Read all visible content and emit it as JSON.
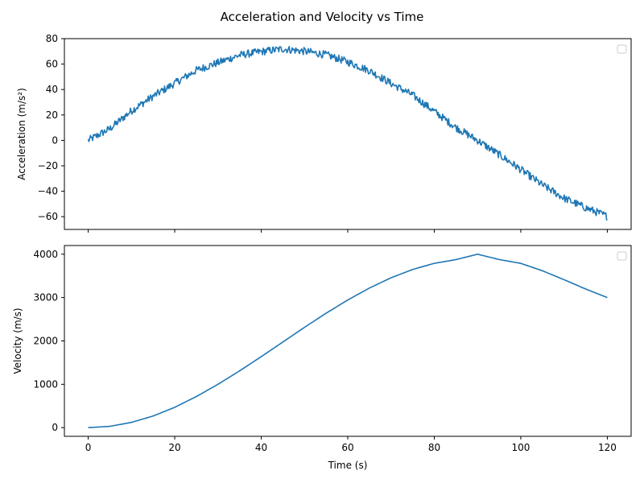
{
  "figure": {
    "title": "Acceleration and Velocity vs Time"
  },
  "chart_data": [
    {
      "type": "line",
      "ylabel": "Acceleration (m/s²)",
      "xlabel": "",
      "xlim": [
        -5.5,
        125.5
      ],
      "ylim": [
        -70,
        80
      ],
      "x_ticks": [
        0,
        20,
        40,
        60,
        80,
        100,
        120
      ],
      "x_tick_labels_visible": false,
      "y_ticks": [
        -60,
        -40,
        -20,
        0,
        20,
        40,
        60,
        80
      ],
      "y_tick_labels": [
        "−60",
        "−40",
        "−20",
        "0",
        "20",
        "40",
        "60",
        "80"
      ],
      "grid": false,
      "legend": {
        "placement": "top-right",
        "entries": []
      },
      "line_color": "#1f77b4",
      "noisy": true,
      "series": [
        {
          "x": [
            0,
            5,
            10,
            15,
            20,
            25,
            30,
            35,
            40,
            45,
            50,
            55,
            60,
            65,
            70,
            75,
            80,
            85,
            90,
            95,
            100,
            105,
            110,
            115,
            120
          ],
          "values": [
            0,
            9.1,
            23.3,
            34.7,
            44.9,
            55.1,
            61.1,
            67.0,
            69.8,
            71.9,
            70.1,
            67.3,
            61.7,
            54.9,
            44.8,
            35.6,
            22.8,
            10.2,
            0.0,
            -11.2,
            -22.9,
            -35.1,
            -45.4,
            -53.0,
            -59.7
          ]
        }
      ]
    },
    {
      "type": "line",
      "ylabel": "Velocity (m/s)",
      "xlabel": "Time (s)",
      "xlim": [
        -5.5,
        125.5
      ],
      "ylim": [
        -200,
        4200
      ],
      "x_ticks": [
        0,
        20,
        40,
        60,
        80,
        100,
        120
      ],
      "x_tick_labels": [
        "0",
        "20",
        "40",
        "60",
        "80",
        "100",
        "120"
      ],
      "y_ticks": [
        0,
        1000,
        2000,
        3000,
        4000
      ],
      "y_tick_labels": [
        "0",
        "1000",
        "2000",
        "3000",
        "4000"
      ],
      "grid": false,
      "legend": {
        "placement": "top-right",
        "entries": []
      },
      "line_color": "#1f77b4",
      "series": [
        {
          "x": [
            0,
            5,
            10,
            15,
            20,
            25,
            30,
            35,
            40,
            45,
            50,
            55,
            60,
            65,
            70,
            75,
            80,
            85,
            90,
            95,
            100,
            105,
            110,
            115,
            120
          ],
          "values": [
            0,
            30,
            121,
            268,
            468,
            717,
            1000,
            1309,
            1637,
            1975,
            2313,
            2639,
            2944,
            3219,
            3456,
            3648,
            3789,
            3875,
            4000,
            3877,
            3788,
            3618,
            3412,
            3197,
            3000
          ]
        }
      ]
    }
  ]
}
